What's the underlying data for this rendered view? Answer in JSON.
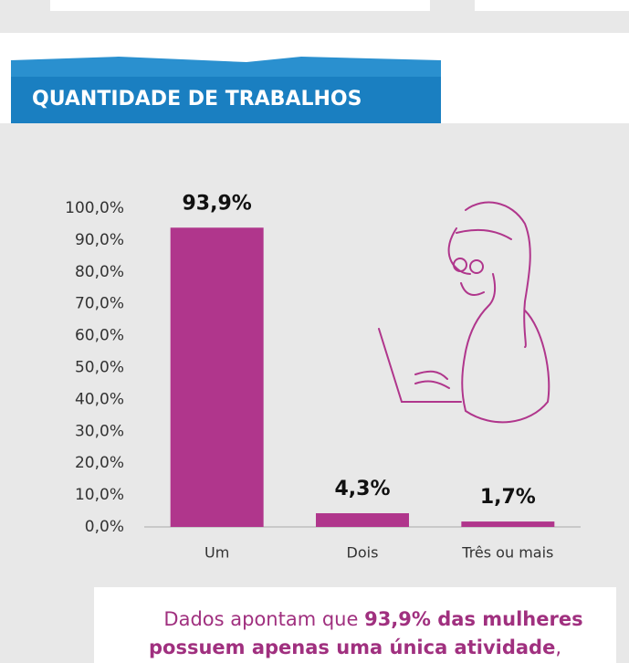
{
  "chart_data": {
    "type": "bar",
    "title": "QUANTIDADE DE TRABALHOS",
    "categories": [
      "Um",
      "Dois",
      "Três ou mais"
    ],
    "values": [
      93.9,
      4.3,
      1.7
    ],
    "value_labels": [
      "93,9%",
      "4,3%",
      "1,7%"
    ],
    "color": "#b0368c",
    "ylim": [
      0,
      100
    ],
    "yticks": [
      {
        "value": 0,
        "label": "0,0%"
      },
      {
        "value": 10,
        "label": "10,0%"
      },
      {
        "value": 20,
        "label": "20,0%"
      },
      {
        "value": 30,
        "label": "30,0%"
      },
      {
        "value": 40,
        "label": "40,0%"
      },
      {
        "value": 50,
        "label": "50,0%"
      },
      {
        "value": 60,
        "label": "60,0%"
      },
      {
        "value": 70,
        "label": "70,0%"
      },
      {
        "value": 80,
        "label": "80,0%"
      },
      {
        "value": 90,
        "label": "90,0%"
      },
      {
        "value": 100,
        "label": "100,0%"
      }
    ],
    "grid": false
  },
  "annotation": [
    "Dados apontam que ",
    "93,9% das mulheres possuem apenas uma única atividade",
    ","
  ]
}
